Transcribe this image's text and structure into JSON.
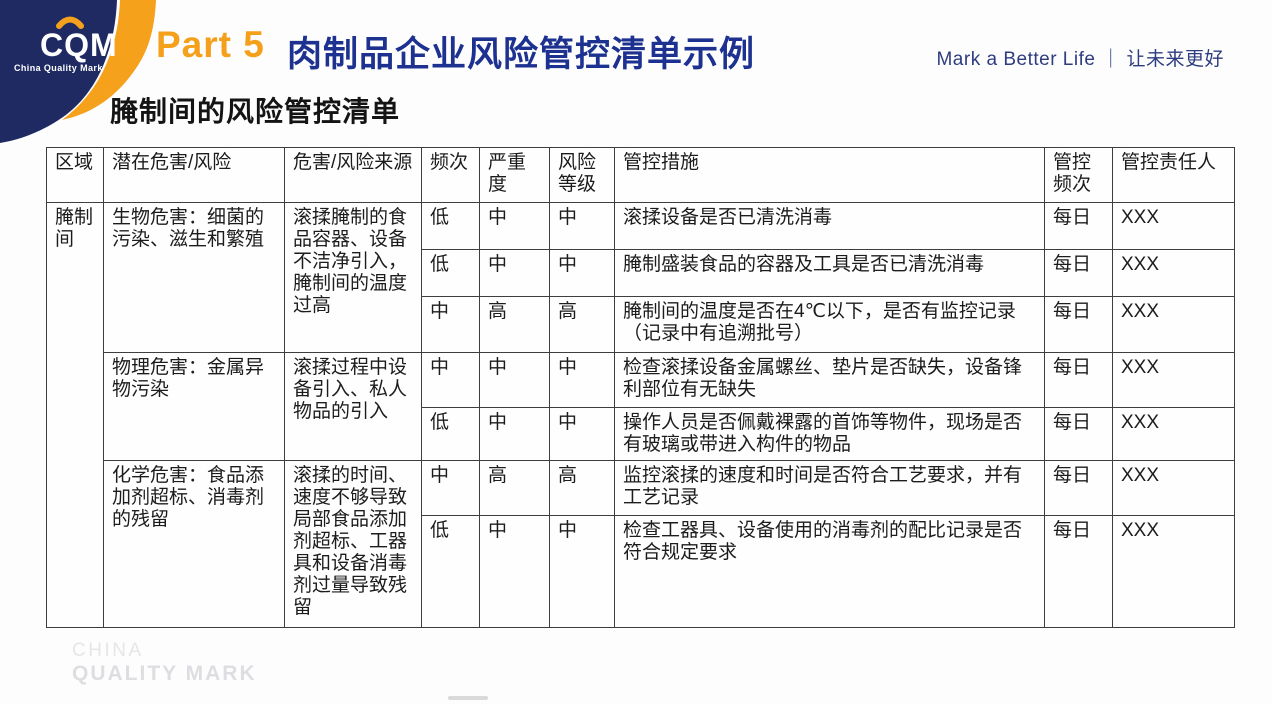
{
  "colors": {
    "brand_navy": "#1f2a63",
    "brand_orange": "#f5a11c",
    "title_blue": "#1c3190",
    "tagline_blue": "#2e3c80"
  },
  "logo": {
    "acronym": "CQM",
    "caption": "China Quality Mark"
  },
  "header": {
    "part_label": "Part 5",
    "title": "肉制品企业风险管控清单示例",
    "tagline": "Mark a Better Life ｜ 让未来更好"
  },
  "subtitle": "腌制间的风险管控清单",
  "table": {
    "columns": [
      "区域",
      "潜在危害/风险",
      "危害/风险来源",
      "频次",
      "严重度",
      "风险等级",
      "管控措施",
      "管控频次",
      "管控责任人"
    ],
    "area_label": "腌制间",
    "groups": [
      {
        "hazard": "生物危害：细菌的污染、滋生和繁殖",
        "source": "滚揉腌制的食品容器、设备不洁净引入，腌制间的温度过高",
        "rows": [
          {
            "frequency": "低",
            "severity": "中",
            "risk_level": "中",
            "measure": "滚揉设备是否已清洗消毒",
            "control_frequency": "每日",
            "responsible": "XXX"
          },
          {
            "frequency": "低",
            "severity": "中",
            "risk_level": "中",
            "measure": "腌制盛装食品的容器及工具是否已清洗消毒",
            "control_frequency": "每日",
            "responsible": "XXX"
          },
          {
            "frequency": "中",
            "severity": "高",
            "risk_level": "高",
            "measure": "腌制间的温度是否在4℃以下，是否有监控记录\n（记录中有追溯批号）",
            "control_frequency": "每日",
            "responsible": "XXX"
          }
        ]
      },
      {
        "hazard": "物理危害：金属异物污染",
        "source": "滚揉过程中设备引入、私人物品的引入",
        "rows": [
          {
            "frequency": "中",
            "severity": "中",
            "risk_level": "中",
            "measure": "检查滚揉设备金属螺丝、垫片是否缺失，设备锋利部位有无缺失",
            "control_frequency": "每日",
            "responsible": "XXX"
          },
          {
            "frequency": "低",
            "severity": "中",
            "risk_level": "中",
            "measure": "操作人员是否佩戴裸露的首饰等物件，现场是否有玻璃或带进入构件的物品",
            "control_frequency": "每日",
            "responsible": "XXX"
          }
        ]
      },
      {
        "hazard": "化学危害：食品添加剂超标、消毒剂的残留",
        "source": "滚揉的时间、速度不够导致局部食品添加剂超标、工器具和设备消毒剂过量导致残留",
        "rows": [
          {
            "frequency": "中",
            "severity": "高",
            "risk_level": "高",
            "measure": "监控滚揉的速度和时间是否符合工艺要求，并有工艺记录",
            "control_frequency": "每日",
            "responsible": "XXX"
          },
          {
            "frequency": "低",
            "severity": "中",
            "risk_level": "中",
            "measure": "检查工器具、设备使用的消毒剂的配比记录是否符合规定要求",
            "control_frequency": "每日",
            "responsible": "XXX"
          }
        ]
      }
    ]
  },
  "watermark": {
    "line1": "CHINA",
    "line2": "QUALITY MARK"
  }
}
